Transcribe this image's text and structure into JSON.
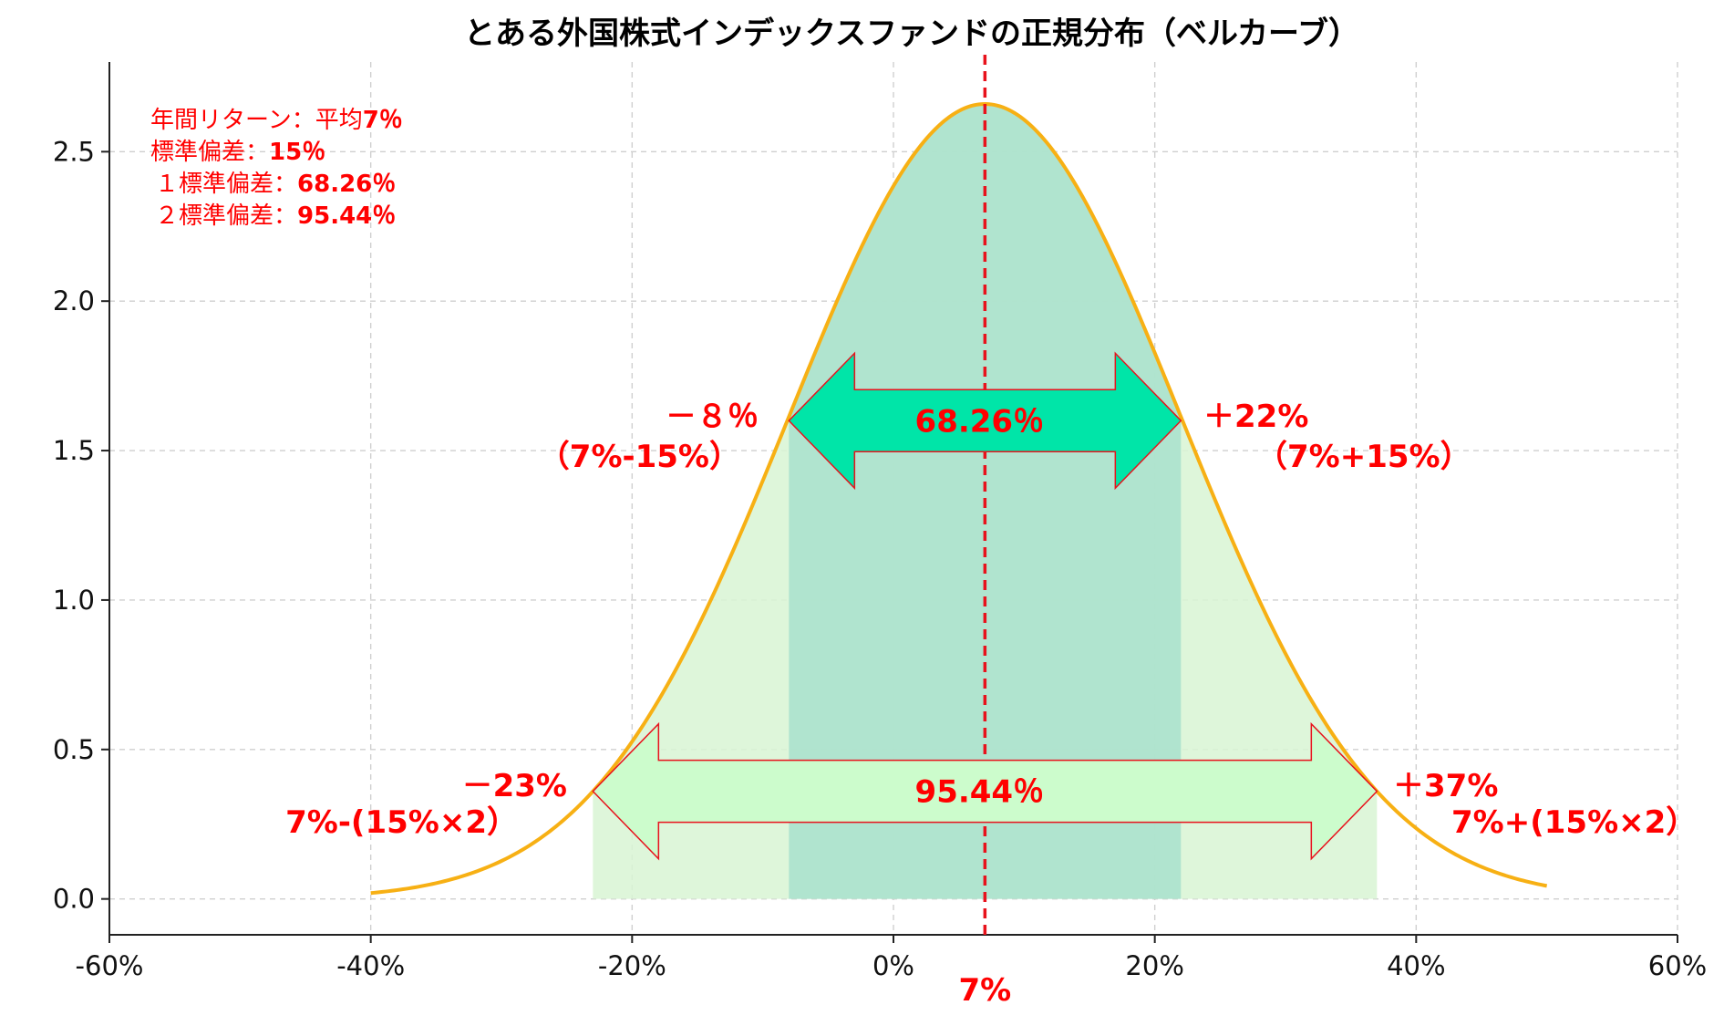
{
  "chart_data": {
    "type": "line",
    "title": "とある外国株式インデックスファンドの正規分布（ベルカーブ）",
    "x_range": [
      -0.4,
      0.5
    ],
    "xlim": [
      -0.6,
      0.6
    ],
    "ylim": [
      -0.12,
      2.8
    ],
    "mean": 0.07,
    "std": 0.15,
    "x_ticks": [
      {
        "v": -0.6,
        "label": "-60%"
      },
      {
        "v": -0.4,
        "label": "-40%"
      },
      {
        "v": -0.2,
        "label": "-20%"
      },
      {
        "v": 0.0,
        "label": "0%"
      },
      {
        "v": 0.2,
        "label": "20%"
      },
      {
        "v": 0.4,
        "label": "40%"
      },
      {
        "v": 0.6,
        "label": "60%"
      }
    ],
    "y_ticks": [
      {
        "v": 0.0,
        "label": "0.0"
      },
      {
        "v": 0.5,
        "label": "0.5"
      },
      {
        "v": 1.0,
        "label": "1.0"
      },
      {
        "v": 1.5,
        "label": "1.5"
      },
      {
        "v": 2.0,
        "label": "2.0"
      },
      {
        "v": 2.5,
        "label": "2.5"
      }
    ],
    "grid": true,
    "colors": {
      "curve": "#f7b014",
      "mean_line": "#e8121c",
      "band_1sd": "#a8e0cc",
      "band_2sd": "#d8f5d4",
      "arrow_1sd": "#00e5a8",
      "arrow_2sd": "#ccfccc",
      "arrow_edge": "#e8121c",
      "annotation": "#ff0000"
    },
    "bands": [
      {
        "from": -0.23,
        "to": 0.37,
        "label": "95.44％"
      },
      {
        "from": -0.08,
        "to": 0.22,
        "label": "68.26％"
      }
    ],
    "arrows": [
      {
        "from": -0.08,
        "to": 0.22,
        "y": 1.6,
        "label": "68.26％"
      },
      {
        "from": -0.23,
        "to": 0.37,
        "y": 0.36,
        "label": "95.44％"
      }
    ],
    "info_lines": [
      {
        "normal": "年間リターン：平均",
        "bold": "7％"
      },
      {
        "normal": "標準偏差：",
        "bold": "15％"
      },
      {
        "normal": "１標準偏差：",
        "bold": "68.26％"
      },
      {
        "normal": "２標準偏差：",
        "bold": "95.44％"
      }
    ],
    "annotations": {
      "minus1sd": {
        "value": "－８％",
        "formula": "（7%-15%）"
      },
      "plus1sd": {
        "value": "＋22%",
        "formula": "（7%+15%）"
      },
      "minus2sd": {
        "value": "－23%",
        "formula": "7%-(15%×2）"
      },
      "plus2sd": {
        "value": "＋37%",
        "formula": "7%+(15%×2）"
      },
      "mean_label": "7%"
    }
  }
}
